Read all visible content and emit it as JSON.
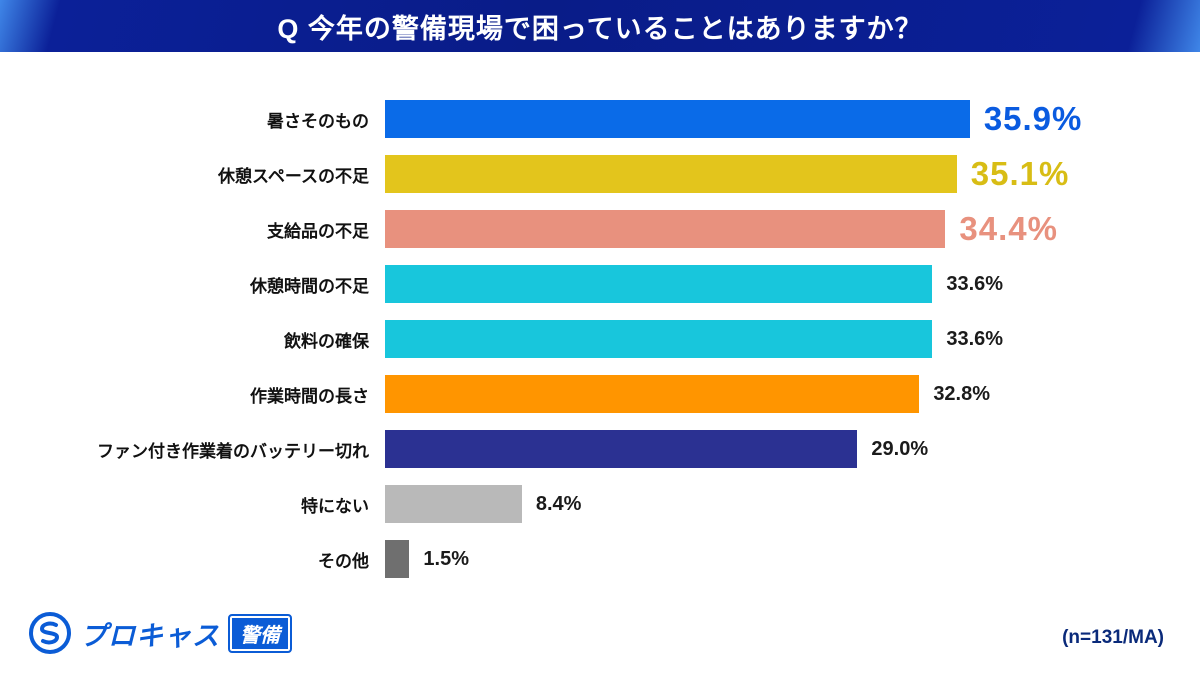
{
  "header": {
    "title": "Q 今年の警備現場で困っていることはありますか？"
  },
  "chart_data": {
    "type": "bar",
    "orientation": "horizontal",
    "title": "Q 今年の警備現場で困っていることはありますか？",
    "categories": [
      "暑さそのもの",
      "休憩スペースの不足",
      "支給品の不足",
      "休憩時間の不足",
      "飲料の確保",
      "作業時間の長さ",
      "ファン付き作業着のバッテリー切れ",
      "特にない",
      "その他"
    ],
    "values": [
      35.9,
      35.1,
      34.4,
      33.6,
      33.6,
      32.8,
      29.0,
      8.4,
      1.5
    ],
    "value_labels": [
      "35.9%",
      "35.1%",
      "34.4%",
      "33.6%",
      "33.6%",
      "32.8%",
      "29.0%",
      "8.4%",
      "1.5%"
    ],
    "bar_colors": [
      "#0a6be8",
      "#e3c51c",
      "#e8917e",
      "#18c6dc",
      "#18c6dc",
      "#ff9500",
      "#2b3192",
      "#b9b9b9",
      "#6f6f6f"
    ],
    "highlight_label_colors": [
      "#0a5be0",
      "#d8bd15",
      "#e8917e"
    ],
    "highlight_top": 3,
    "xlim": [
      0,
      40
    ],
    "grid": false,
    "legend": "none",
    "note": "(n=131/MA)"
  },
  "footer": {
    "logo_text": "プロキャス",
    "logo_badge": "警備",
    "logo_icon": "procas-s-circle-icon",
    "note": "(n=131/MA)"
  },
  "colors": {
    "header_bg": "#0b2098",
    "header_accent": "#3f86e8",
    "brand_blue": "#0b5cd6",
    "note_navy": "#0a2a7a"
  }
}
